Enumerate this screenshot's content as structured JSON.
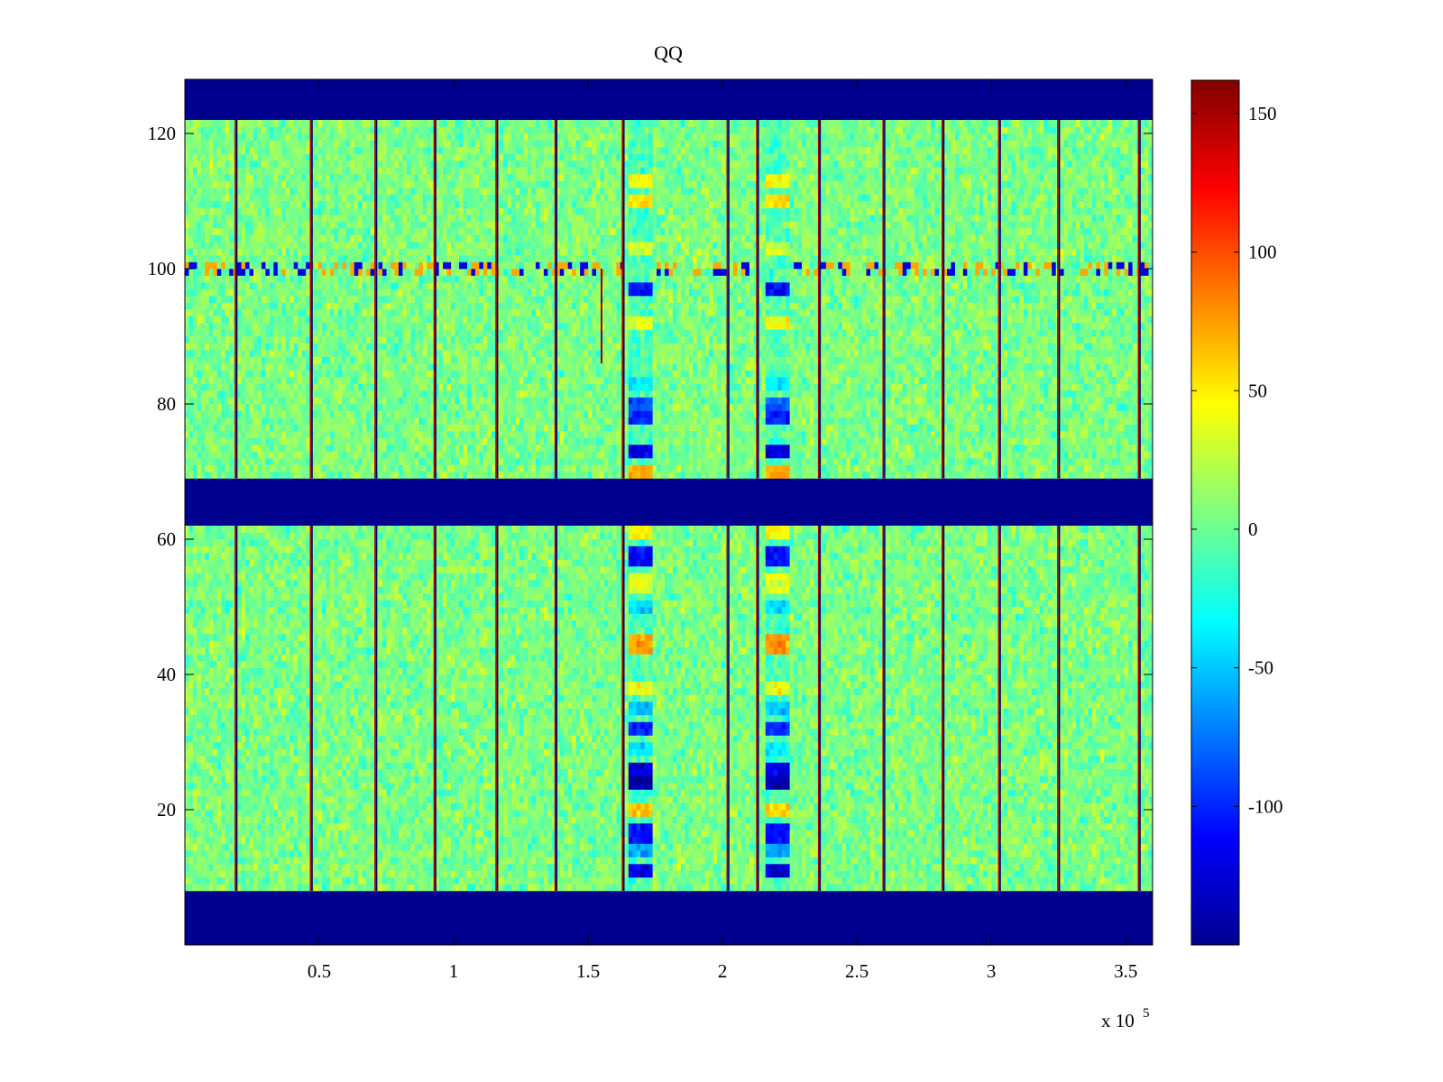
{
  "chart_data": {
    "type": "heatmap",
    "title": "QQ",
    "xlabel": "",
    "ylabel": "",
    "x_exponent_label": "x 10",
    "x_exponent": "5",
    "xlim": [
      0,
      3.6
    ],
    "ylim": [
      0,
      128
    ],
    "x_ticks": [
      0.5,
      1,
      1.5,
      2,
      2.5,
      3,
      3.5
    ],
    "x_tick_labels": [
      "0.5",
      "1",
      "1.5",
      "2",
      "2.5",
      "3",
      "3.5"
    ],
    "y_ticks": [
      20,
      40,
      60,
      80,
      100,
      120
    ],
    "y_tick_labels": [
      "20",
      "40",
      "60",
      "80",
      "100",
      "120"
    ],
    "colorbar": {
      "colormap": "jet",
      "range": [
        -150,
        162
      ],
      "ticks": [
        150,
        100,
        50,
        0,
        -50,
        -100
      ],
      "tick_labels": [
        "150",
        "100",
        "50",
        "0",
        "-50",
        "-100"
      ],
      "min_color": "#00008f",
      "max_color": "#800000"
    },
    "background_value": -150,
    "active_row_bands": [
      [
        8,
        62
      ],
      [
        69,
        122
      ]
    ],
    "noise_level": 15,
    "row_stripe": {
      "row": 100,
      "amplitude": 120
    },
    "column_lines_x": [
      0.19,
      0.47,
      0.71,
      0.93,
      1.16,
      1.38,
      1.63,
      2.02,
      2.13,
      2.36,
      2.6,
      2.82,
      3.03,
      3.25,
      3.55
    ],
    "short_column_line": {
      "x": 1.55,
      "y_range": [
        86,
        100
      ]
    },
    "anomaly_columns": [
      {
        "x_center": 1.7,
        "half_width": 0.045
      },
      {
        "x_center": 2.2,
        "half_width": 0.045
      }
    ],
    "anomaly_rows": [
      {
        "y": 11,
        "value": -120
      },
      {
        "y": 14,
        "value": -60
      },
      {
        "y": 16.5,
        "value": -110
      },
      {
        "y": 20,
        "value": 60
      },
      {
        "y": 24,
        "value": -140
      },
      {
        "y": 26,
        "value": -120
      },
      {
        "y": 29,
        "value": -40
      },
      {
        "y": 32,
        "value": -100
      },
      {
        "y": 35,
        "value": -50
      },
      {
        "y": 38,
        "value": 40
      },
      {
        "y": 44.5,
        "value": 75
      },
      {
        "y": 50,
        "value": -40
      },
      {
        "y": 53.5,
        "value": 35
      },
      {
        "y": 57.5,
        "value": -110
      },
      {
        "y": 61,
        "value": 45
      },
      {
        "y": 70,
        "value": 70
      },
      {
        "y": 73,
        "value": -120
      },
      {
        "y": 78,
        "value": -100
      },
      {
        "y": 80,
        "value": -80
      },
      {
        "y": 83,
        "value": -40
      },
      {
        "y": 92,
        "value": 40
      },
      {
        "y": 97,
        "value": -110
      },
      {
        "y": 103,
        "value": 30
      },
      {
        "y": 110,
        "value": 55
      },
      {
        "y": 113,
        "value": 45
      }
    ]
  }
}
